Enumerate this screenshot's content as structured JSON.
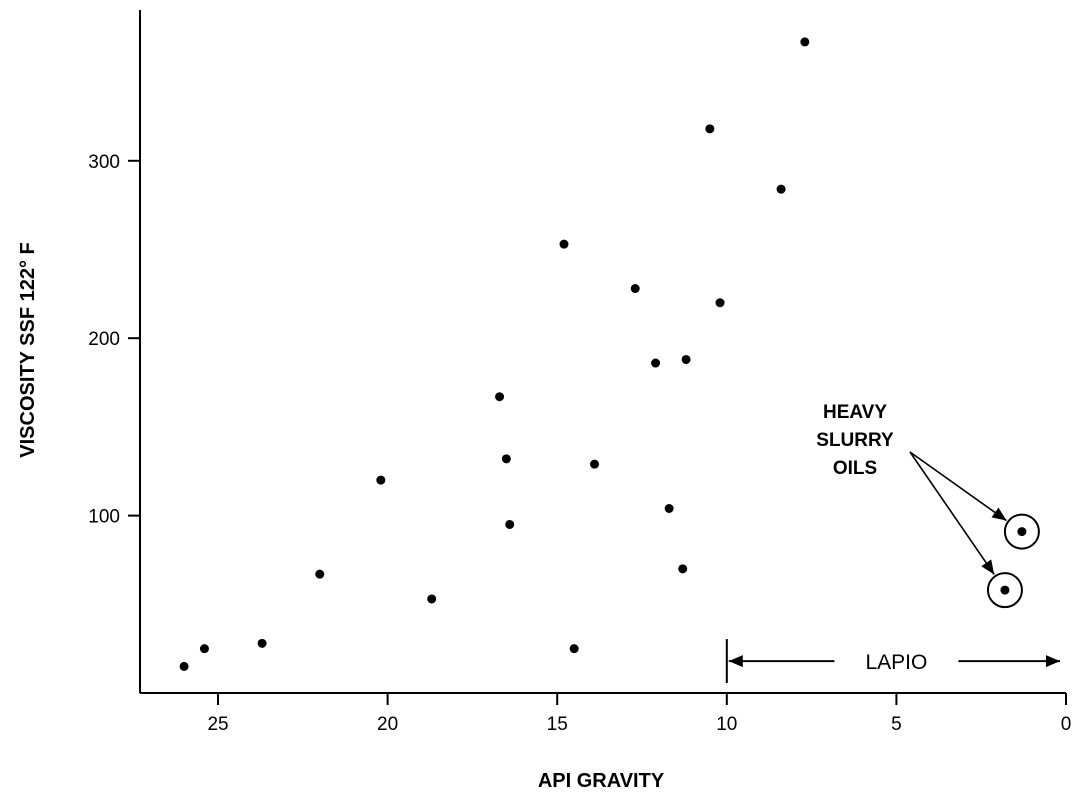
{
  "chart_data": {
    "type": "scatter",
    "xlabel": "API GRAVITY",
    "ylabel": "VISCOSITY SSF 122° F",
    "xlim": [
      27.3,
      0
    ],
    "ylim": [
      0,
      385
    ],
    "x_reversed": true,
    "grid": false,
    "x_ticks": [
      25,
      20,
      15,
      10,
      5,
      0
    ],
    "y_ticks": [
      100,
      200,
      300
    ],
    "points": [
      {
        "x": 26.0,
        "y": 15
      },
      {
        "x": 25.4,
        "y": 25
      },
      {
        "x": 23.7,
        "y": 28
      },
      {
        "x": 22.0,
        "y": 67
      },
      {
        "x": 20.2,
        "y": 120
      },
      {
        "x": 18.7,
        "y": 53
      },
      {
        "x": 16.7,
        "y": 167
      },
      {
        "x": 16.5,
        "y": 132
      },
      {
        "x": 16.4,
        "y": 95
      },
      {
        "x": 14.8,
        "y": 253
      },
      {
        "x": 14.5,
        "y": 25
      },
      {
        "x": 13.9,
        "y": 129
      },
      {
        "x": 12.7,
        "y": 228
      },
      {
        "x": 12.1,
        "y": 186
      },
      {
        "x": 11.7,
        "y": 104
      },
      {
        "x": 11.3,
        "y": 70
      },
      {
        "x": 11.2,
        "y": 188
      },
      {
        "x": 10.5,
        "y": 318
      },
      {
        "x": 10.2,
        "y": 220
      },
      {
        "x": 8.4,
        "y": 284
      },
      {
        "x": 7.7,
        "y": 367
      }
    ],
    "highlighted_points": [
      {
        "x": 1.3,
        "y": 91
      },
      {
        "x": 1.8,
        "y": 58
      }
    ],
    "annotations": {
      "heavy_slurry": [
        "HEAVY",
        "SLURRY",
        "OILS"
      ],
      "range_label": "LAPIO",
      "range_from": 10,
      "range_to": 0,
      "range_y": 18
    },
    "colors": {
      "points": "#000000",
      "axes": "#000000"
    }
  }
}
